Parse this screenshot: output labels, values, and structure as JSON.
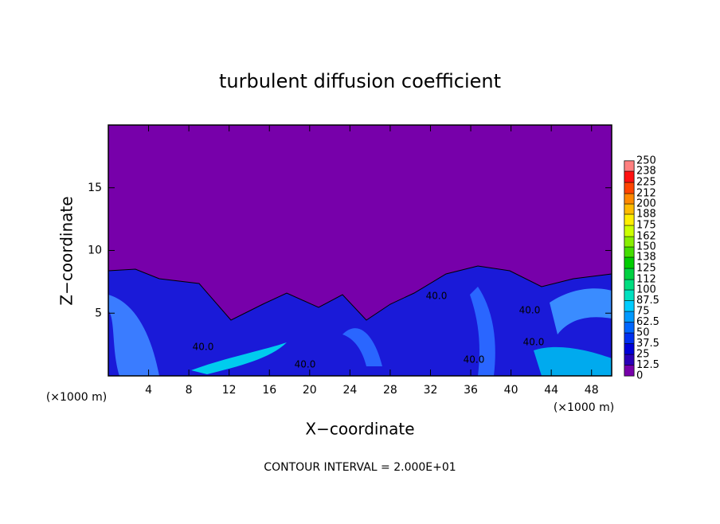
{
  "chart_data": {
    "type": "contour",
    "title": "turbulent diffusion coefficient",
    "xlabel": "X−coordinate",
    "ylabel": "Z−coordinate",
    "units": [
      "(×1000 m)",
      "(×1000 m)"
    ],
    "footer": "CONTOUR INTERVAL = 2.000E+01",
    "annotations": [
      "40.0",
      "40.0",
      "40.0",
      "40.0",
      "40.0",
      "40.0"
    ],
    "xlim": [
      0,
      50
    ],
    "xticks": [
      4,
      8,
      12,
      16,
      20,
      24,
      28,
      32,
      36,
      40,
      44,
      48
    ],
    "ylim": [
      0,
      20
    ],
    "yticks": [
      5,
      10,
      15
    ],
    "colorbar": {
      "ticks": [
        0,
        12.5,
        25,
        37.5,
        50,
        62.5,
        75,
        87.5,
        100,
        112,
        125,
        138,
        150,
        162,
        175,
        188,
        200,
        212,
        225,
        238,
        250
      ],
      "colors": [
        "#7700aa",
        "#2a00b8",
        "#0000d8",
        "#0030f0",
        "#0066ff",
        "#0099ff",
        "#00ccff",
        "#00e0c0",
        "#00dd80",
        "#00d040",
        "#00cc00",
        "#44dd00",
        "#88ee00",
        "#ccff00",
        "#ffee00",
        "#ffbb00",
        "#ff8800",
        "#ff4400",
        "#ff1010",
        "#ff8080"
      ]
    }
  }
}
